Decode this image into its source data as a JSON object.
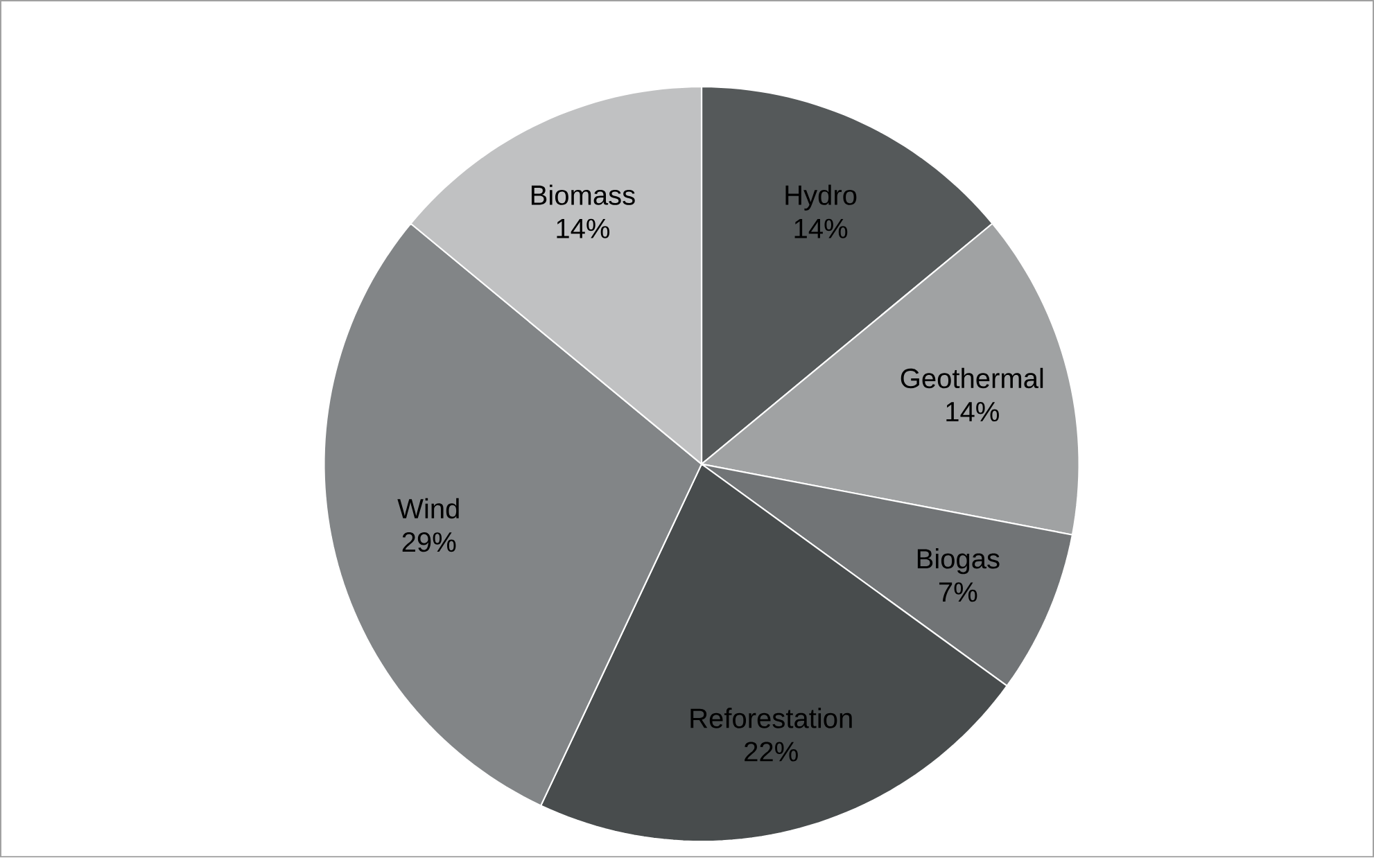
{
  "chart_data": {
    "type": "pie",
    "categories": [
      "Hydro",
      "Geothermal",
      "Biogas",
      "Reforestation",
      "Wind",
      "Biomass"
    ],
    "values": [
      14,
      14,
      7,
      22,
      29,
      14
    ],
    "colors": [
      "#55595a",
      "#a0a2a3",
      "#717476",
      "#484c4d",
      "#828587",
      "#c0c1c2"
    ],
    "value_labels": [
      "14%",
      "14%",
      "7%",
      "22%",
      "29%",
      "14%"
    ]
  }
}
